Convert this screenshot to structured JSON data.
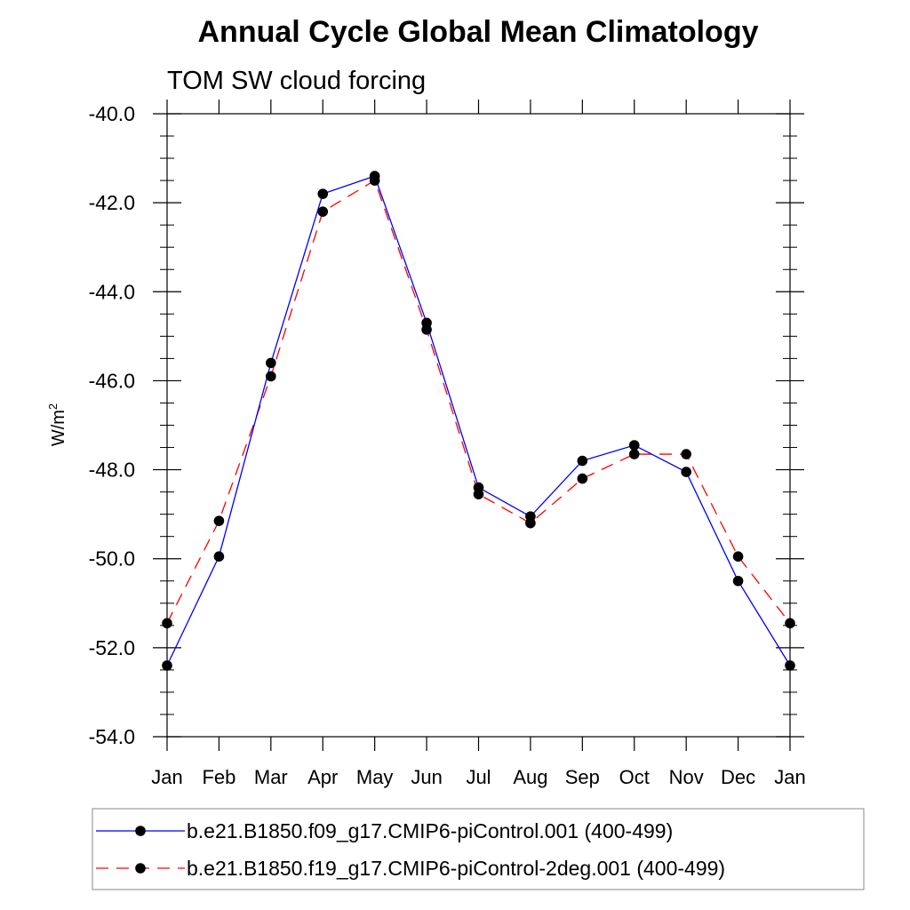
{
  "chart_data": {
    "type": "line",
    "title": "Annual Cycle Global Mean Climatology",
    "subtitle": "TOM SW cloud forcing",
    "ylabel_base": "W/m",
    "ylabel_sup": "2",
    "xlabel": "",
    "categories": [
      "Jan",
      "Feb",
      "Mar",
      "Apr",
      "May",
      "Jun",
      "Jul",
      "Aug",
      "Sep",
      "Oct",
      "Nov",
      "Dec",
      "Jan"
    ],
    "ylim": [
      -54.0,
      -40.0
    ],
    "yticks": [
      -40.0,
      -42.0,
      -44.0,
      -46.0,
      -48.0,
      -50.0,
      -52.0,
      -54.0
    ],
    "ytick_labels": [
      "-40.0",
      "-42.0",
      "-44.0",
      "-46.0",
      "-48.0",
      "-50.0",
      "-52.0",
      "-54.0"
    ],
    "series": [
      {
        "name": "b.e21.B1850.f09_g17.CMIP6-piControl.001 (400-499)",
        "color": "#0000ff",
        "dash": "solid",
        "values": [
          -52.4,
          -49.95,
          -45.6,
          -41.8,
          -41.4,
          -44.7,
          -48.4,
          -49.05,
          -47.8,
          -47.45,
          -48.05,
          -50.5,
          -52.4
        ]
      },
      {
        "name": "b.e21.B1850.f19_g17.CMIP6-piControl-2deg.001 (400-499)",
        "color": "#ff0000",
        "dash": "dashed",
        "values": [
          -51.45,
          -49.15,
          -45.9,
          -42.2,
          -41.5,
          -44.85,
          -48.55,
          -49.2,
          -48.2,
          -47.65,
          -47.65,
          -49.95,
          -51.45
        ]
      }
    ],
    "legend_position": "bottom"
  }
}
